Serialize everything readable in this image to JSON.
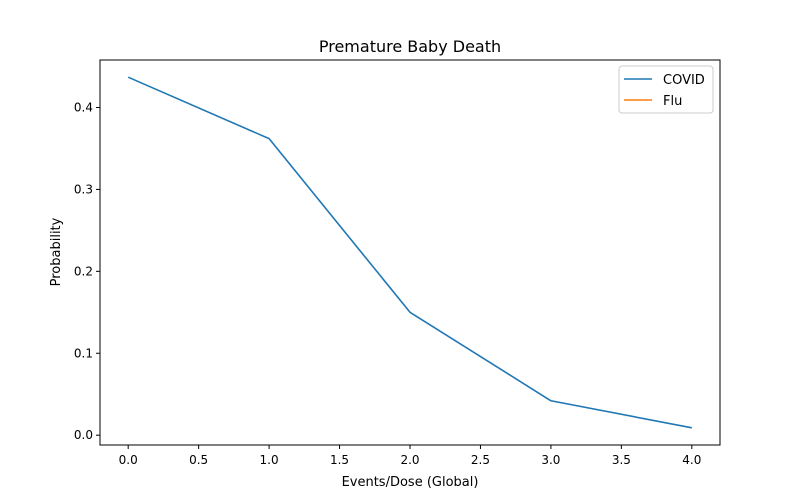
{
  "chart_data": {
    "type": "line",
    "title": "Premature Baby Death",
    "xlabel": "Events/Dose (Global)",
    "ylabel": "Probability",
    "xlim": [
      -0.2,
      4.2
    ],
    "ylim": [
      -0.012,
      0.458
    ],
    "xticks": [
      "0.0",
      "0.5",
      "1.0",
      "1.5",
      "2.0",
      "2.5",
      "3.0",
      "3.5",
      "4.0"
    ],
    "yticks": [
      "0.0",
      "0.1",
      "0.2",
      "0.3",
      "0.4"
    ],
    "grid": false,
    "legend_position": "top-right",
    "series": [
      {
        "name": "COVID",
        "color": "#1f77b4",
        "x": [
          0,
          1,
          2,
          3,
          4
        ],
        "y": [
          0.437,
          0.362,
          0.15,
          0.042,
          0.009
        ]
      },
      {
        "name": "Flu",
        "color": "#ff7f0e",
        "x": [],
        "y": []
      }
    ]
  }
}
